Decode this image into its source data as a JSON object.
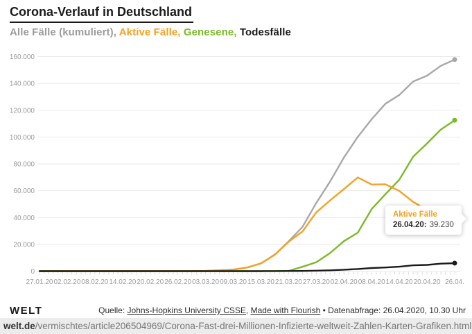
{
  "header": {
    "title": "Corona-Verlauf in Deutschland"
  },
  "chart_data": {
    "type": "line",
    "title": "Corona-Verlauf in Deutschland",
    "xlabel": "",
    "ylabel": "",
    "ylim": [
      0,
      160000
    ],
    "grid": "horizontal",
    "legend_position": "subtitle-inline",
    "x": [
      "27.01.20",
      "30.01.20",
      "02.02.20",
      "05.02.20",
      "08.02.20",
      "11.02.20",
      "14.02.20",
      "17.02.20",
      "20.02.20",
      "23.02.20",
      "26.02.20",
      "29.02.20",
      "03.03.20",
      "06.03.20",
      "09.03.20",
      "12.03.20",
      "15.03.20",
      "18.03.20",
      "21.03.20",
      "24.03.20",
      "27.03.20",
      "30.03.20",
      "02.04.20",
      "05.04.20",
      "08.04.20",
      "11.04.20",
      "14.04.20",
      "17.04.20",
      "20.04.20",
      "23.04.20",
      "26.04.20"
    ],
    "x_tick_labels": [
      "27.01.20",
      "02.02.20",
      "08.02.20",
      "14.02.20",
      "20.02.20",
      "26.02.20",
      "03.03.20",
      "09.03.20",
      "15.03.20",
      "21.03.20",
      "27.03.20",
      "02.04.20",
      "08.04.20",
      "14.04.20",
      "20.04.20",
      "26.04."
    ],
    "y_ticks": [
      0,
      20000,
      40000,
      60000,
      80000,
      100000,
      120000,
      140000,
      160000
    ],
    "y_tick_labels": [
      "0",
      "20.000",
      "40.000",
      "60.000",
      "80.000",
      "100.000",
      "120.000",
      "140.000",
      "160.000"
    ],
    "series": [
      {
        "name": "Alle Fälle (kumuliert)",
        "color": "#a8a8a8",
        "values": [
          1,
          4,
          10,
          12,
          13,
          16,
          16,
          16,
          16,
          16,
          27,
          79,
          196,
          670,
          1176,
          2745,
          5795,
          12327,
          22213,
          32986,
          50871,
          66885,
          84794,
          100123,
          113296,
          124908,
          131359,
          141397,
          145742,
          153129,
          157770
        ]
      },
      {
        "name": "Aktive Fälle",
        "color": "#f5a120",
        "values": [
          1,
          4,
          10,
          12,
          13,
          16,
          15,
          14,
          4,
          2,
          13,
          63,
          180,
          653,
          1156,
          2714,
          5738,
          12194,
          21896,
          29586,
          43871,
          52740,
          61247,
          69839,
          64647,
          64772,
          59865,
          51645,
          45900,
          41954,
          39230
        ]
      },
      {
        "name": "Genesene",
        "color": "#7bb928",
        "values": [
          0,
          0,
          0,
          0,
          0,
          0,
          1,
          2,
          12,
          14,
          14,
          16,
          16,
          17,
          18,
          25,
          46,
          105,
          233,
          3243,
          6658,
          13500,
          22440,
          28700,
          46300,
          57400,
          68200,
          85400,
          95200,
          105600,
          112560
        ]
      },
      {
        "name": "Todesfälle",
        "color": "#1a1a1a",
        "values": [
          0,
          0,
          0,
          0,
          0,
          0,
          0,
          0,
          0,
          0,
          0,
          0,
          0,
          0,
          2,
          6,
          11,
          28,
          84,
          157,
          342,
          645,
          1107,
          1584,
          2349,
          2736,
          3294,
          4352,
          4642,
          5575,
          5980
        ]
      }
    ],
    "tooltip": {
      "series": "Aktive Fälle",
      "date_label": "26.04.20:",
      "value_label": "39.230",
      "value": 39230
    }
  },
  "footer": {
    "logo": "WELT",
    "source_prefix": "Quelle: ",
    "link_jhu": "Johns-Hopkins University CSSE",
    "sep": ", ",
    "link_flourish": "Made with Flourish",
    "meta": " • Datenabfrage: 26.04.2020, 10.30 Uhr"
  },
  "urlbar": {
    "domain": "welt.de",
    "path": "/vermischtes/article206504969/Corona-Fast-drei-Millionen-Infizierte-weltweit-Zahlen-Karten-Grafiken.html"
  }
}
